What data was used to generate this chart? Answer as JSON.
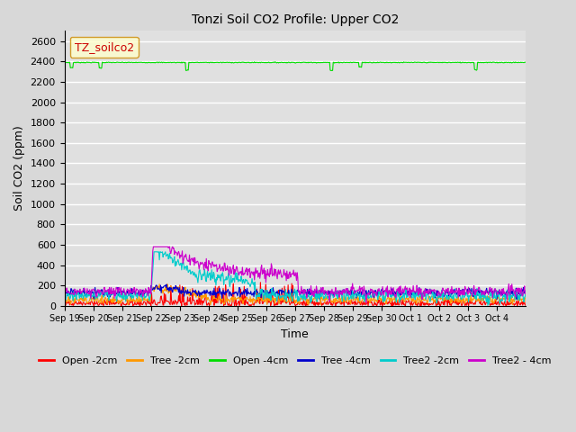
{
  "title": "Tonzi Soil CO2 Profile: Upper CO2",
  "xlabel": "Time",
  "ylabel": "Soil CO2 (ppm)",
  "ylim": [
    0,
    2700
  ],
  "yticks": [
    0,
    200,
    400,
    600,
    800,
    1000,
    1200,
    1400,
    1600,
    1800,
    2000,
    2200,
    2400,
    2600
  ],
  "background_color": "#d8d8d8",
  "plot_bg_color": "#e0e0e0",
  "grid_color": "#ffffff",
  "legend_label": "TZ_soilco2",
  "legend_box_facecolor": "#ffffcc",
  "legend_box_edgecolor": "#cc8800",
  "legend_text_color": "#cc0000",
  "series": [
    {
      "label": "Open -2cm",
      "color": "#ff0000"
    },
    {
      "label": "Tree -2cm",
      "color": "#ff9900"
    },
    {
      "label": "Open -4cm",
      "color": "#00dd00"
    },
    {
      "label": "Tree -4cm",
      "color": "#0000cc"
    },
    {
      "label": "Tree2 -2cm",
      "color": "#00cccc"
    },
    {
      "label": "Tree2 - 4cm",
      "color": "#cc00cc"
    }
  ],
  "tick_labels": [
    "Sep 19",
    "Sep 20",
    "Sep 21",
    "Sep 22",
    "Sep 23",
    "Sep 24",
    "Sep 25",
    "Sep 26",
    "Sep 27",
    "Sep 28",
    "Sep 29",
    "Sep 30",
    "Oct 1",
    "Oct 2",
    "Oct 3",
    "Oct 4"
  ]
}
